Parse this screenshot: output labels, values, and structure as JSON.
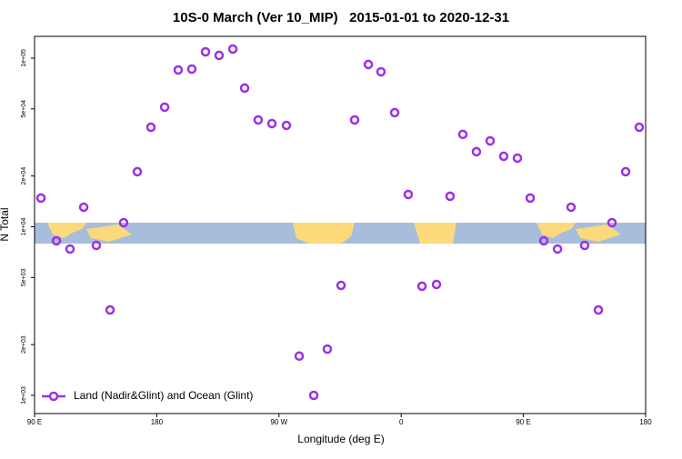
{
  "chart_data": {
    "type": "scatter",
    "title": "10S-0 March (Ver 10_MIP)   2015-01-01 to 2020-12-31",
    "x_label": "Longitude (deg E)",
    "y_label": "N Total",
    "xlim": [
      90,
      540
    ],
    "ylim": [
      780,
      134600
    ],
    "yscale": "log",
    "grid": false,
    "legend": "lower left",
    "xticks": [
      {
        "value": 90,
        "label": "90 E"
      },
      {
        "value": 180,
        "label": "180"
      },
      {
        "value": 270,
        "label": "90 W"
      },
      {
        "value": 360,
        "label": "0"
      },
      {
        "value": 450,
        "label": "90 E"
      },
      {
        "value": 540,
        "label": "180"
      }
    ],
    "yticks": [
      {
        "value": 1000,
        "label": "1e+03"
      },
      {
        "value": 2000,
        "label": "2e+03"
      },
      {
        "value": 5000,
        "label": "5e+03"
      },
      {
        "value": 10000,
        "label": "1e+04"
      },
      {
        "value": 20000,
        "label": "2e+04"
      },
      {
        "value": 50000,
        "label": "5e+04"
      },
      {
        "value": 100000,
        "label": "1e+05"
      }
    ],
    "series": [
      {
        "name": "Land (Nadir&Glint) and Ocean (Glint)",
        "color": "#9b30e6",
        "x": [
          94.7,
          106.1,
          116.1,
          126.2,
          135.5,
          145.6,
          155.6,
          165.7,
          175.7,
          185.8,
          195.8,
          205.8,
          215.9,
          225.9,
          236.0,
          244.7,
          254.7,
          264.8,
          275.5,
          284.9,
          295.6,
          305.6,
          315.7,
          325.7,
          335.8,
          345.1,
          355.2,
          365.2,
          375.3,
          386.0,
          396.0,
          405.4,
          415.4,
          425.5,
          435.5,
          445.6,
          455.0,
          465.0,
          475.1,
          485.1,
          495.1,
          505.2,
          515.2,
          525.3,
          535.3
        ],
        "values": [
          14800,
          8250,
          7380,
          13060,
          7750,
          3210,
          10570,
          21200,
          38900,
          51200,
          85100,
          86100,
          109000,
          103800,
          113200,
          66400,
          43000,
          40900,
          39900,
          1710,
          1000,
          1880,
          4490,
          43000,
          91700,
          83000,
          47500,
          15540,
          4440,
          4550,
          15170,
          35300,
          27860,
          32300,
          26180,
          25530,
          14800,
          8250,
          7380,
          13060,
          7750,
          3210,
          10570,
          21200,
          38900
        ]
      }
    ]
  }
}
